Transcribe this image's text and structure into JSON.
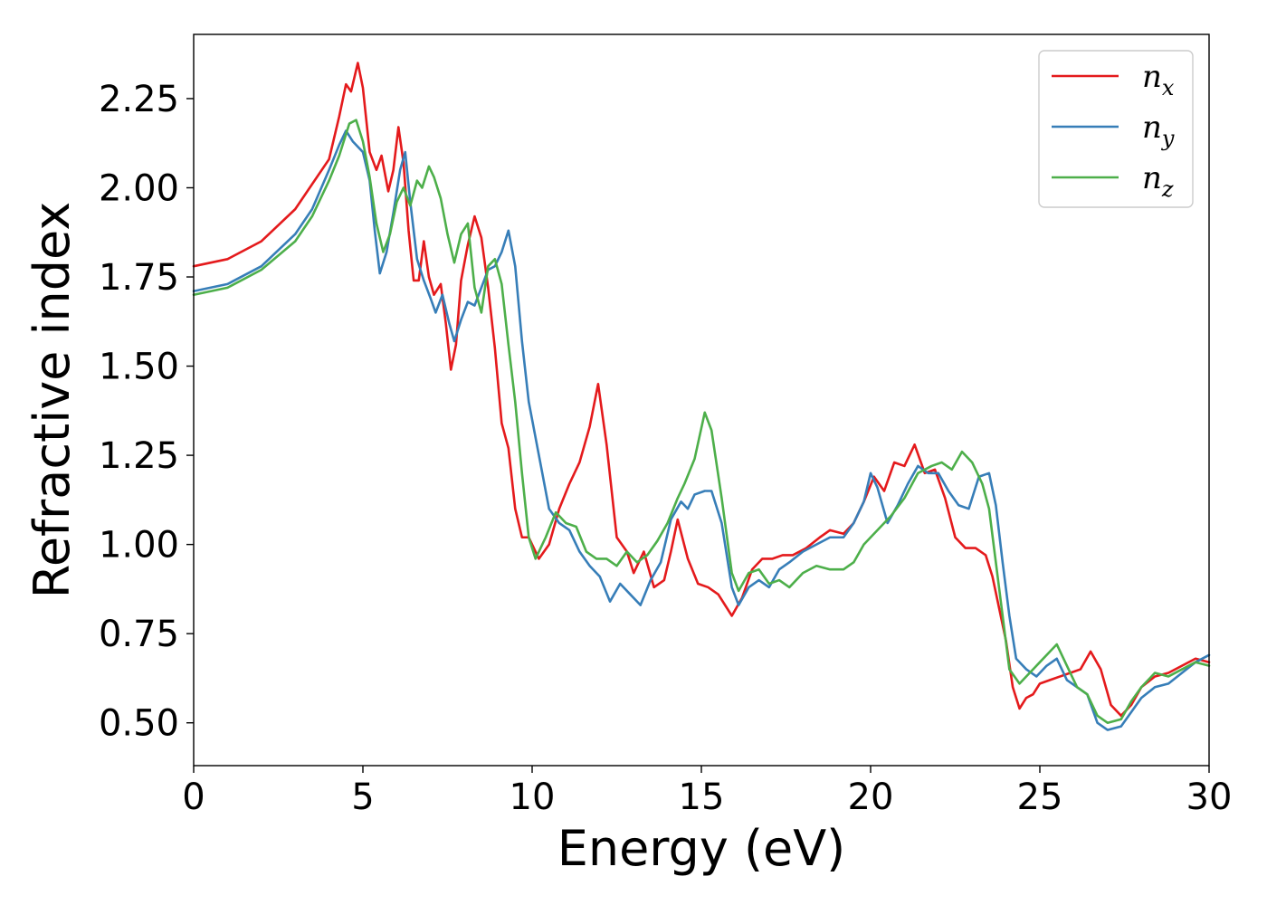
{
  "chart_data": {
    "type": "line",
    "title": "",
    "xlabel": "Energy (eV)",
    "ylabel": "Refractive index",
    "xlim": [
      0,
      30
    ],
    "ylim": [
      0.38,
      2.43
    ],
    "xticks": [
      0,
      5,
      10,
      15,
      20,
      25,
      30
    ],
    "yticks": [
      0.5,
      0.75,
      1.0,
      1.25,
      1.5,
      1.75,
      2.0,
      2.25
    ],
    "ytick_labels": [
      "0.50",
      "0.75",
      "1.00",
      "1.25",
      "1.50",
      "1.75",
      "2.00",
      "2.25"
    ],
    "grid": false,
    "legend_position": "top-right",
    "series": [
      {
        "name": "n_x",
        "label_base": "n",
        "label_sub": "x",
        "color": "#e41a1c",
        "points": [
          [
            0,
            1.78
          ],
          [
            1,
            1.8
          ],
          [
            2,
            1.85
          ],
          [
            3,
            1.94
          ],
          [
            3.5,
            2.01
          ],
          [
            4,
            2.08
          ],
          [
            4.3,
            2.2
          ],
          [
            4.5,
            2.29
          ],
          [
            4.65,
            2.27
          ],
          [
            4.85,
            2.35
          ],
          [
            5.0,
            2.28
          ],
          [
            5.2,
            2.1
          ],
          [
            5.4,
            2.05
          ],
          [
            5.55,
            2.09
          ],
          [
            5.75,
            1.99
          ],
          [
            5.9,
            2.05
          ],
          [
            6.05,
            2.17
          ],
          [
            6.2,
            2.07
          ],
          [
            6.35,
            1.88
          ],
          [
            6.5,
            1.74
          ],
          [
            6.65,
            1.74
          ],
          [
            6.8,
            1.85
          ],
          [
            6.95,
            1.75
          ],
          [
            7.1,
            1.7
          ],
          [
            7.3,
            1.73
          ],
          [
            7.45,
            1.62
          ],
          [
            7.6,
            1.49
          ],
          [
            7.75,
            1.56
          ],
          [
            7.9,
            1.74
          ],
          [
            8.1,
            1.84
          ],
          [
            8.3,
            1.92
          ],
          [
            8.5,
            1.86
          ],
          [
            8.7,
            1.72
          ],
          [
            8.9,
            1.55
          ],
          [
            9.1,
            1.34
          ],
          [
            9.3,
            1.27
          ],
          [
            9.5,
            1.1
          ],
          [
            9.7,
            1.02
          ],
          [
            9.9,
            1.02
          ],
          [
            10.2,
            0.96
          ],
          [
            10.5,
            1.0
          ],
          [
            10.8,
            1.1
          ],
          [
            11.1,
            1.17
          ],
          [
            11.4,
            1.23
          ],
          [
            11.7,
            1.33
          ],
          [
            11.95,
            1.45
          ],
          [
            12.2,
            1.28
          ],
          [
            12.5,
            1.02
          ],
          [
            12.8,
            0.98
          ],
          [
            13.0,
            0.92
          ],
          [
            13.3,
            0.98
          ],
          [
            13.6,
            0.88
          ],
          [
            13.9,
            0.9
          ],
          [
            14.1,
            0.98
          ],
          [
            14.3,
            1.07
          ],
          [
            14.6,
            0.96
          ],
          [
            14.9,
            0.89
          ],
          [
            15.2,
            0.88
          ],
          [
            15.5,
            0.86
          ],
          [
            15.7,
            0.83
          ],
          [
            15.9,
            0.8
          ],
          [
            16.2,
            0.85
          ],
          [
            16.5,
            0.93
          ],
          [
            16.8,
            0.96
          ],
          [
            17.1,
            0.96
          ],
          [
            17.4,
            0.97
          ],
          [
            17.7,
            0.97
          ],
          [
            18.1,
            0.99
          ],
          [
            18.5,
            1.02
          ],
          [
            18.8,
            1.04
          ],
          [
            19.2,
            1.03
          ],
          [
            19.5,
            1.06
          ],
          [
            19.8,
            1.12
          ],
          [
            20.1,
            1.19
          ],
          [
            20.4,
            1.15
          ],
          [
            20.7,
            1.23
          ],
          [
            21.0,
            1.22
          ],
          [
            21.3,
            1.28
          ],
          [
            21.6,
            1.2
          ],
          [
            21.9,
            1.21
          ],
          [
            22.2,
            1.13
          ],
          [
            22.5,
            1.02
          ],
          [
            22.8,
            0.99
          ],
          [
            23.1,
            0.99
          ],
          [
            23.4,
            0.97
          ],
          [
            23.6,
            0.91
          ],
          [
            23.8,
            0.82
          ],
          [
            24.0,
            0.73
          ],
          [
            24.2,
            0.6
          ],
          [
            24.4,
            0.54
          ],
          [
            24.6,
            0.57
          ],
          [
            24.8,
            0.58
          ],
          [
            25.0,
            0.61
          ],
          [
            25.3,
            0.62
          ],
          [
            25.6,
            0.63
          ],
          [
            25.9,
            0.64
          ],
          [
            26.2,
            0.65
          ],
          [
            26.5,
            0.7
          ],
          [
            26.8,
            0.65
          ],
          [
            27.1,
            0.55
          ],
          [
            27.4,
            0.52
          ],
          [
            27.7,
            0.55
          ],
          [
            28.0,
            0.6
          ],
          [
            28.4,
            0.63
          ],
          [
            28.8,
            0.64
          ],
          [
            29.2,
            0.66
          ],
          [
            29.6,
            0.68
          ],
          [
            30,
            0.67
          ]
        ]
      },
      {
        "name": "n_y",
        "label_base": "n",
        "label_sub": "y",
        "color": "#377eb8",
        "points": [
          [
            0,
            1.71
          ],
          [
            1,
            1.73
          ],
          [
            2,
            1.78
          ],
          [
            3,
            1.87
          ],
          [
            3.5,
            1.94
          ],
          [
            4,
            2.05
          ],
          [
            4.3,
            2.12
          ],
          [
            4.5,
            2.16
          ],
          [
            4.7,
            2.13
          ],
          [
            5.0,
            2.1
          ],
          [
            5.2,
            2.02
          ],
          [
            5.35,
            1.88
          ],
          [
            5.5,
            1.76
          ],
          [
            5.7,
            1.82
          ],
          [
            5.9,
            1.93
          ],
          [
            6.1,
            2.05
          ],
          [
            6.25,
            2.1
          ],
          [
            6.4,
            1.96
          ],
          [
            6.6,
            1.8
          ],
          [
            6.8,
            1.74
          ],
          [
            7.0,
            1.69
          ],
          [
            7.15,
            1.65
          ],
          [
            7.35,
            1.7
          ],
          [
            7.55,
            1.62
          ],
          [
            7.7,
            1.57
          ],
          [
            7.9,
            1.63
          ],
          [
            8.1,
            1.68
          ],
          [
            8.3,
            1.67
          ],
          [
            8.5,
            1.72
          ],
          [
            8.7,
            1.77
          ],
          [
            8.9,
            1.78
          ],
          [
            9.1,
            1.82
          ],
          [
            9.3,
            1.88
          ],
          [
            9.5,
            1.78
          ],
          [
            9.7,
            1.57
          ],
          [
            9.9,
            1.4
          ],
          [
            10.2,
            1.25
          ],
          [
            10.5,
            1.1
          ],
          [
            10.8,
            1.06
          ],
          [
            11.1,
            1.04
          ],
          [
            11.4,
            0.98
          ],
          [
            11.7,
            0.94
          ],
          [
            12.0,
            0.91
          ],
          [
            12.3,
            0.84
          ],
          [
            12.6,
            0.89
          ],
          [
            12.9,
            0.86
          ],
          [
            13.2,
            0.83
          ],
          [
            13.5,
            0.9
          ],
          [
            13.8,
            0.95
          ],
          [
            14.1,
            1.07
          ],
          [
            14.4,
            1.12
          ],
          [
            14.6,
            1.1
          ],
          [
            14.8,
            1.14
          ],
          [
            15.1,
            1.15
          ],
          [
            15.3,
            1.15
          ],
          [
            15.6,
            1.06
          ],
          [
            15.9,
            0.88
          ],
          [
            16.1,
            0.83
          ],
          [
            16.4,
            0.88
          ],
          [
            16.7,
            0.9
          ],
          [
            17.0,
            0.88
          ],
          [
            17.3,
            0.93
          ],
          [
            17.6,
            0.95
          ],
          [
            18.0,
            0.98
          ],
          [
            18.4,
            1.0
          ],
          [
            18.8,
            1.02
          ],
          [
            19.2,
            1.02
          ],
          [
            19.5,
            1.06
          ],
          [
            19.8,
            1.12
          ],
          [
            20.0,
            1.2
          ],
          [
            20.2,
            1.16
          ],
          [
            20.5,
            1.06
          ],
          [
            20.8,
            1.11
          ],
          [
            21.1,
            1.17
          ],
          [
            21.4,
            1.22
          ],
          [
            21.7,
            1.2
          ],
          [
            22.0,
            1.2
          ],
          [
            22.3,
            1.15
          ],
          [
            22.6,
            1.11
          ],
          [
            22.9,
            1.1
          ],
          [
            23.2,
            1.19
          ],
          [
            23.5,
            1.2
          ],
          [
            23.7,
            1.11
          ],
          [
            23.9,
            0.95
          ],
          [
            24.1,
            0.8
          ],
          [
            24.3,
            0.68
          ],
          [
            24.6,
            0.65
          ],
          [
            24.9,
            0.63
          ],
          [
            25.2,
            0.66
          ],
          [
            25.5,
            0.68
          ],
          [
            25.8,
            0.62
          ],
          [
            26.1,
            0.6
          ],
          [
            26.4,
            0.58
          ],
          [
            26.7,
            0.5
          ],
          [
            27.0,
            0.48
          ],
          [
            27.4,
            0.49
          ],
          [
            27.7,
            0.53
          ],
          [
            28.0,
            0.57
          ],
          [
            28.4,
            0.6
          ],
          [
            28.8,
            0.61
          ],
          [
            29.2,
            0.64
          ],
          [
            29.6,
            0.67
          ],
          [
            30,
            0.69
          ]
        ]
      },
      {
        "name": "n_z",
        "label_base": "n",
        "label_sub": "z",
        "color": "#4daf4a",
        "points": [
          [
            0,
            1.7
          ],
          [
            1,
            1.72
          ],
          [
            2,
            1.77
          ],
          [
            3,
            1.85
          ],
          [
            3.5,
            1.92
          ],
          [
            4,
            2.02
          ],
          [
            4.3,
            2.09
          ],
          [
            4.6,
            2.18
          ],
          [
            4.8,
            2.19
          ],
          [
            5.0,
            2.13
          ],
          [
            5.2,
            2.03
          ],
          [
            5.4,
            1.9
          ],
          [
            5.6,
            1.82
          ],
          [
            5.8,
            1.87
          ],
          [
            6.0,
            1.96
          ],
          [
            6.2,
            2.0
          ],
          [
            6.4,
            1.95
          ],
          [
            6.6,
            2.02
          ],
          [
            6.75,
            2.0
          ],
          [
            6.95,
            2.06
          ],
          [
            7.1,
            2.03
          ],
          [
            7.3,
            1.97
          ],
          [
            7.5,
            1.87
          ],
          [
            7.7,
            1.79
          ],
          [
            7.9,
            1.87
          ],
          [
            8.1,
            1.9
          ],
          [
            8.3,
            1.72
          ],
          [
            8.5,
            1.65
          ],
          [
            8.7,
            1.78
          ],
          [
            8.9,
            1.8
          ],
          [
            9.1,
            1.73
          ],
          [
            9.3,
            1.56
          ],
          [
            9.5,
            1.4
          ],
          [
            9.7,
            1.2
          ],
          [
            9.9,
            1.02
          ],
          [
            10.1,
            0.96
          ],
          [
            10.4,
            1.02
          ],
          [
            10.7,
            1.09
          ],
          [
            11.0,
            1.06
          ],
          [
            11.3,
            1.05
          ],
          [
            11.6,
            0.98
          ],
          [
            11.9,
            0.96
          ],
          [
            12.2,
            0.96
          ],
          [
            12.5,
            0.94
          ],
          [
            12.8,
            0.98
          ],
          [
            13.1,
            0.95
          ],
          [
            13.4,
            0.97
          ],
          [
            13.7,
            1.01
          ],
          [
            14.0,
            1.06
          ],
          [
            14.3,
            1.13
          ],
          [
            14.5,
            1.17
          ],
          [
            14.8,
            1.24
          ],
          [
            15.1,
            1.37
          ],
          [
            15.3,
            1.32
          ],
          [
            15.6,
            1.13
          ],
          [
            15.9,
            0.92
          ],
          [
            16.1,
            0.87
          ],
          [
            16.4,
            0.92
          ],
          [
            16.7,
            0.93
          ],
          [
            17.0,
            0.89
          ],
          [
            17.3,
            0.9
          ],
          [
            17.6,
            0.88
          ],
          [
            18.0,
            0.92
          ],
          [
            18.4,
            0.94
          ],
          [
            18.8,
            0.93
          ],
          [
            19.2,
            0.93
          ],
          [
            19.5,
            0.95
          ],
          [
            19.8,
            1.0
          ],
          [
            20.2,
            1.04
          ],
          [
            20.6,
            1.08
          ],
          [
            21.0,
            1.13
          ],
          [
            21.4,
            1.2
          ],
          [
            21.8,
            1.22
          ],
          [
            22.1,
            1.23
          ],
          [
            22.4,
            1.21
          ],
          [
            22.7,
            1.26
          ],
          [
            23.0,
            1.23
          ],
          [
            23.3,
            1.17
          ],
          [
            23.5,
            1.1
          ],
          [
            23.7,
            0.95
          ],
          [
            23.9,
            0.8
          ],
          [
            24.1,
            0.65
          ],
          [
            24.4,
            0.61
          ],
          [
            24.7,
            0.64
          ],
          [
            25.0,
            0.67
          ],
          [
            25.3,
            0.7
          ],
          [
            25.5,
            0.72
          ],
          [
            25.8,
            0.66
          ],
          [
            26.1,
            0.6
          ],
          [
            26.4,
            0.58
          ],
          [
            26.7,
            0.52
          ],
          [
            27.0,
            0.5
          ],
          [
            27.4,
            0.51
          ],
          [
            27.7,
            0.56
          ],
          [
            28.0,
            0.6
          ],
          [
            28.4,
            0.64
          ],
          [
            28.8,
            0.63
          ],
          [
            29.2,
            0.65
          ],
          [
            29.6,
            0.67
          ],
          [
            30,
            0.66
          ]
        ]
      }
    ]
  }
}
